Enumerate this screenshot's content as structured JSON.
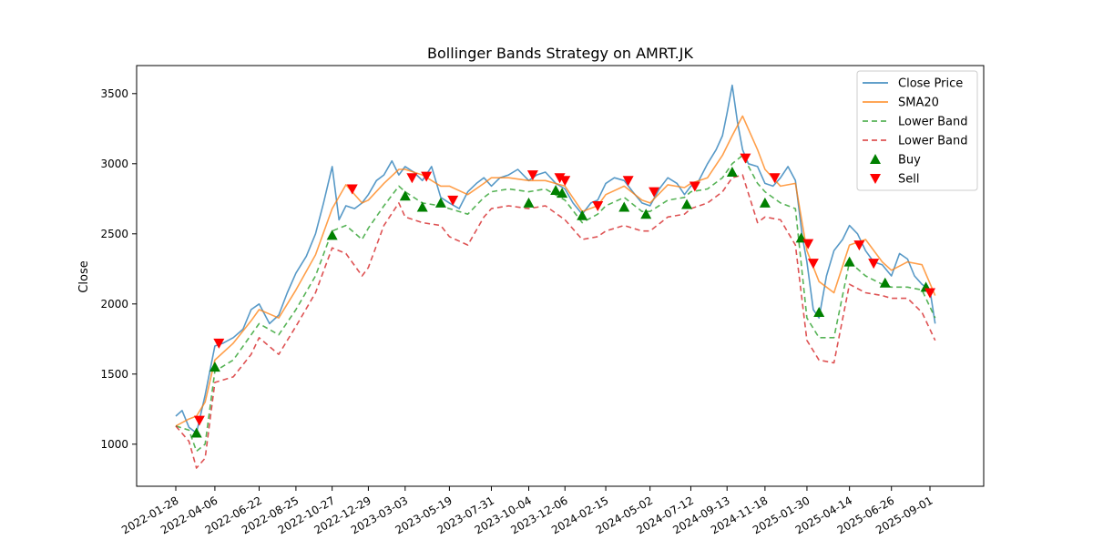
{
  "chart_data": {
    "type": "line",
    "title": "Bollinger Bands Strategy on AMRT.JK",
    "xlabel": "",
    "ylabel": "Close",
    "ylim": [
      700,
      3700
    ],
    "yticks": [
      1000,
      1500,
      2000,
      2500,
      3000,
      3500
    ],
    "xticks": [
      "2022-01-28",
      "2022-04-06",
      "2022-06-22",
      "2022-08-25",
      "2022-10-27",
      "2022-12-29",
      "2023-03-03",
      "2023-05-19",
      "2023-07-31",
      "2023-10-04",
      "2023-12-06",
      "2024-02-15",
      "2024-05-02",
      "2024-07-12",
      "2024-09-13",
      "2024-11-18",
      "2025-01-30",
      "2025-04-14",
      "2025-06-26",
      "2025-09-01"
    ],
    "grid": false,
    "legend_position": "top-right",
    "colors": {
      "close": "#1f77b4",
      "sma": "#ff7f0e",
      "lower1": "#2ca02c",
      "lower2": "#d62728",
      "buy": "#008000",
      "sell": "#ff0000"
    },
    "legend": [
      "Close Price",
      "SMA20",
      "Lower Band",
      "Lower Band",
      "Buy",
      "Sell"
    ],
    "series": [
      {
        "name": "Close Price",
        "x": [
          "2022-01-28",
          "2022-02-08",
          "2022-02-20",
          "2022-03-05",
          "2022-03-20",
          "2022-04-06",
          "2022-04-20",
          "2022-05-08",
          "2022-05-25",
          "2022-06-08",
          "2022-06-22",
          "2022-07-10",
          "2022-07-26",
          "2022-08-10",
          "2022-08-25",
          "2022-09-12",
          "2022-09-28",
          "2022-10-12",
          "2022-10-27",
          "2022-11-08",
          "2022-11-20",
          "2022-12-05",
          "2022-12-18",
          "2022-12-29",
          "2023-01-12",
          "2023-01-25",
          "2023-02-08",
          "2023-02-20",
          "2023-03-03",
          "2023-03-18",
          "2023-04-02",
          "2023-04-18",
          "2023-05-04",
          "2023-05-19",
          "2023-06-05",
          "2023-06-20",
          "2023-07-05",
          "2023-07-18",
          "2023-07-31",
          "2023-08-15",
          "2023-08-30",
          "2023-09-15",
          "2023-10-04",
          "2023-10-18",
          "2023-11-02",
          "2023-11-20",
          "2023-12-06",
          "2023-12-20",
          "2024-01-05",
          "2024-01-20",
          "2024-02-01",
          "2024-02-15",
          "2024-03-01",
          "2024-03-18",
          "2024-04-02",
          "2024-04-18",
          "2024-05-02",
          "2024-05-18",
          "2024-06-02",
          "2024-06-18",
          "2024-07-01",
          "2024-07-12",
          "2024-07-26",
          "2024-08-10",
          "2024-08-25",
          "2024-09-05",
          "2024-09-13",
          "2024-09-22",
          "2024-10-01",
          "2024-10-10",
          "2024-10-20",
          "2024-11-05",
          "2024-11-18",
          "2024-12-02",
          "2024-12-15",
          "2024-12-28",
          "2025-01-10",
          "2025-01-22",
          "2025-01-30",
          "2025-02-10",
          "2025-02-20",
          "2025-03-05",
          "2025-03-18",
          "2025-04-02",
          "2025-04-14",
          "2025-04-28",
          "2025-05-12",
          "2025-05-26",
          "2025-06-10",
          "2025-06-26",
          "2025-07-10",
          "2025-07-24",
          "2025-08-05",
          "2025-08-18",
          "2025-09-01",
          "2025-09-10"
        ],
        "values": [
          1200,
          1240,
          1120,
          1080,
          1350,
          1700,
          1720,
          1760,
          1820,
          1960,
          2000,
          1860,
          1920,
          2080,
          2220,
          2340,
          2500,
          2720,
          2980,
          2600,
          2700,
          2680,
          2720,
          2780,
          2880,
          2920,
          3020,
          2920,
          2980,
          2940,
          2880,
          2980,
          2760,
          2720,
          2680,
          2800,
          2860,
          2900,
          2840,
          2900,
          2920,
          2960,
          2880,
          2920,
          2940,
          2860,
          2820,
          2720,
          2640,
          2720,
          2740,
          2860,
          2900,
          2880,
          2800,
          2720,
          2700,
          2820,
          2900,
          2860,
          2780,
          2840,
          2880,
          3000,
          3100,
          3200,
          3360,
          3560,
          3300,
          3100,
          3000,
          2980,
          2860,
          2840,
          2900,
          2980,
          2880,
          2480,
          2300,
          1960,
          1900,
          2200,
          2380,
          2460,
          2560,
          2500,
          2380,
          2300,
          2280,
          2200,
          2360,
          2320,
          2200,
          2140,
          2100,
          1860
        ]
      },
      {
        "name": "SMA20",
        "x": [
          "2022-01-28",
          "2022-02-20",
          "2022-03-05",
          "2022-03-20",
          "2022-04-06",
          "2022-05-08",
          "2022-06-08",
          "2022-06-22",
          "2022-07-26",
          "2022-08-25",
          "2022-09-28",
          "2022-10-27",
          "2022-11-20",
          "2022-12-18",
          "2022-12-29",
          "2023-01-25",
          "2023-02-20",
          "2023-03-03",
          "2023-04-02",
          "2023-05-04",
          "2023-05-19",
          "2023-06-20",
          "2023-07-18",
          "2023-07-31",
          "2023-08-30",
          "2023-10-04",
          "2023-11-02",
          "2023-12-06",
          "2024-01-05",
          "2024-02-01",
          "2024-02-15",
          "2024-03-18",
          "2024-04-18",
          "2024-05-02",
          "2024-06-02",
          "2024-07-01",
          "2024-07-12",
          "2024-08-10",
          "2024-09-05",
          "2024-09-22",
          "2024-10-10",
          "2024-11-05",
          "2024-11-18",
          "2024-12-15",
          "2025-01-10",
          "2025-01-30",
          "2025-02-20",
          "2025-03-18",
          "2025-04-14",
          "2025-05-12",
          "2025-06-10",
          "2025-06-26",
          "2025-07-24",
          "2025-08-18",
          "2025-09-10"
        ],
        "values": [
          1130,
          1180,
          1200,
          1300,
          1600,
          1720,
          1880,
          1960,
          1900,
          2100,
          2350,
          2680,
          2850,
          2720,
          2740,
          2860,
          2960,
          2960,
          2920,
          2840,
          2840,
          2780,
          2860,
          2900,
          2900,
          2880,
          2880,
          2840,
          2660,
          2700,
          2780,
          2840,
          2740,
          2720,
          2850,
          2830,
          2860,
          2900,
          3060,
          3200,
          3340,
          3100,
          2960,
          2840,
          2860,
          2380,
          2160,
          2080,
          2420,
          2460,
          2300,
          2240,
          2300,
          2280,
          2060
        ]
      },
      {
        "name": "Lower Band",
        "x": [
          "2022-01-28",
          "2022-02-20",
          "2022-03-05",
          "2022-03-20",
          "2022-04-06",
          "2022-05-08",
          "2022-06-08",
          "2022-06-22",
          "2022-07-26",
          "2022-08-25",
          "2022-09-28",
          "2022-10-27",
          "2022-11-20",
          "2022-12-18",
          "2022-12-29",
          "2023-01-25",
          "2023-02-20",
          "2023-03-03",
          "2023-04-02",
          "2023-05-04",
          "2023-05-19",
          "2023-06-20",
          "2023-07-18",
          "2023-07-31",
          "2023-08-30",
          "2023-10-04",
          "2023-11-02",
          "2023-12-06",
          "2024-01-05",
          "2024-02-01",
          "2024-02-15",
          "2024-03-18",
          "2024-04-18",
          "2024-05-02",
          "2024-06-02",
          "2024-07-01",
          "2024-07-12",
          "2024-08-10",
          "2024-09-05",
          "2024-09-22",
          "2024-10-10",
          "2024-11-05",
          "2024-11-18",
          "2024-12-15",
          "2025-01-10",
          "2025-01-30",
          "2025-02-20",
          "2025-03-18",
          "2025-04-14",
          "2025-05-12",
          "2025-06-10",
          "2025-06-26",
          "2025-07-24",
          "2025-08-18",
          "2025-09-10"
        ],
        "values": [
          1130,
          1100,
          950,
          1000,
          1520,
          1600,
          1780,
          1860,
          1780,
          1960,
          2200,
          2520,
          2560,
          2460,
          2540,
          2700,
          2840,
          2800,
          2720,
          2700,
          2680,
          2640,
          2760,
          2800,
          2820,
          2800,
          2820,
          2740,
          2580,
          2640,
          2700,
          2760,
          2660,
          2660,
          2740,
          2760,
          2800,
          2820,
          2900,
          3000,
          3060,
          2860,
          2800,
          2720,
          2680,
          1900,
          1760,
          1760,
          2300,
          2200,
          2140,
          2120,
          2120,
          2100,
          1900
        ]
      },
      {
        "name": "Lower Band",
        "x": [
          "2022-01-28",
          "2022-02-20",
          "2022-03-05",
          "2022-03-20",
          "2022-04-06",
          "2022-05-08",
          "2022-06-08",
          "2022-06-22",
          "2022-07-26",
          "2022-08-25",
          "2022-09-28",
          "2022-10-27",
          "2022-11-20",
          "2022-12-18",
          "2022-12-29",
          "2023-01-25",
          "2023-02-20",
          "2023-03-03",
          "2023-04-02",
          "2023-05-04",
          "2023-05-19",
          "2023-06-20",
          "2023-07-18",
          "2023-07-31",
          "2023-08-30",
          "2023-10-04",
          "2023-11-02",
          "2023-12-06",
          "2024-01-05",
          "2024-02-01",
          "2024-02-15",
          "2024-03-18",
          "2024-04-18",
          "2024-05-02",
          "2024-06-02",
          "2024-07-01",
          "2024-07-12",
          "2024-08-10",
          "2024-09-05",
          "2024-09-22",
          "2024-10-10",
          "2024-11-05",
          "2024-11-18",
          "2024-12-15",
          "2025-01-10",
          "2025-01-30",
          "2025-02-20",
          "2025-03-18",
          "2025-04-14",
          "2025-05-12",
          "2025-06-10",
          "2025-06-26",
          "2025-07-24",
          "2025-08-18",
          "2025-09-10"
        ],
        "values": [
          1130,
          1020,
          830,
          900,
          1440,
          1480,
          1640,
          1760,
          1640,
          1840,
          2080,
          2400,
          2360,
          2200,
          2260,
          2560,
          2720,
          2620,
          2580,
          2560,
          2480,
          2420,
          2620,
          2680,
          2700,
          2680,
          2700,
          2600,
          2460,
          2480,
          2520,
          2560,
          2520,
          2520,
          2620,
          2640,
          2680,
          2720,
          2800,
          2900,
          2920,
          2580,
          2620,
          2600,
          2420,
          1740,
          1600,
          1580,
          2140,
          2080,
          2060,
          2040,
          2040,
          1940,
          1740
        ]
      }
    ],
    "buy_signals": {
      "x": [
        "2022-03-05",
        "2022-04-06",
        "2022-10-27",
        "2023-03-03",
        "2023-04-02",
        "2023-05-04",
        "2023-10-04",
        "2023-11-20",
        "2023-12-01",
        "2024-01-05",
        "2024-03-18",
        "2024-04-25",
        "2024-07-05",
        "2024-09-22",
        "2024-11-18",
        "2025-01-20",
        "2025-02-20",
        "2025-04-14",
        "2025-06-15",
        "2025-08-25"
      ],
      "values": [
        1080,
        1550,
        2490,
        2770,
        2690,
        2720,
        2720,
        2810,
        2790,
        2630,
        2690,
        2640,
        2710,
        2940,
        2720,
        2470,
        1940,
        2300,
        2150,
        2120
      ]
    },
    "sell_signals": {
      "x": [
        "2022-03-10",
        "2022-04-13",
        "2022-12-01",
        "2023-03-15",
        "2023-04-09",
        "2023-05-25",
        "2023-10-11",
        "2023-11-27",
        "2023-12-06",
        "2024-02-01",
        "2024-03-25",
        "2024-05-09",
        "2024-07-19",
        "2024-10-15",
        "2024-12-05",
        "2025-02-01",
        "2025-02-10",
        "2025-05-01",
        "2025-05-26",
        "2025-09-01"
      ],
      "values": [
        1170,
        1720,
        2820,
        2900,
        2910,
        2740,
        2920,
        2900,
        2880,
        2700,
        2880,
        2800,
        2840,
        3040,
        2900,
        2430,
        2290,
        2420,
        2290,
        2080
      ]
    }
  }
}
